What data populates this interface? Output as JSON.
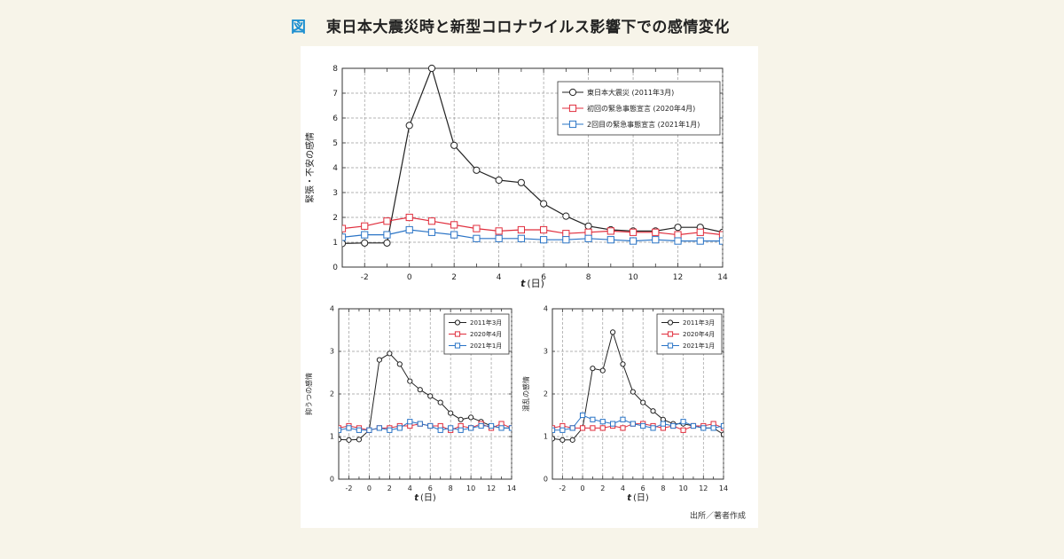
{
  "heading": {
    "fig_label": "図",
    "title": "東日本大震災時と新型コロナウイルス影響下での感情変化"
  },
  "source_note": "出所／著者作成",
  "colors": {
    "black": "#222222",
    "red": "#e02d3c",
    "blue": "#2a74c6",
    "grid": "#9a9a9a",
    "accent": "#1d8fd0"
  },
  "chart_data": [
    {
      "type": "line",
      "ylabel": "緊張・不安の感情",
      "xlabel_italic": "t",
      "xlabel_unit": "(日)",
      "xlim": [
        -3,
        14
      ],
      "ylim": [
        0,
        8
      ],
      "xticks": [
        -2,
        0,
        2,
        4,
        6,
        8,
        10,
        12,
        14
      ],
      "yticks": [
        0,
        1,
        2,
        3,
        4,
        5,
        6,
        7,
        8
      ],
      "grid": true,
      "legend_position": "top-right",
      "series": [
        {
          "name": "東日本大震災 (2011年3月)",
          "color": "#222222",
          "marker": "circle",
          "points": [
            [
              -3,
              0.95
            ],
            [
              -2,
              0.97
            ],
            [
              -1,
              0.97
            ],
            [
              0,
              5.7
            ],
            [
              1,
              8.0
            ],
            [
              2,
              4.9
            ],
            [
              3,
              3.9
            ],
            [
              4,
              3.5
            ],
            [
              5,
              3.4
            ],
            [
              6,
              2.55
            ],
            [
              7,
              2.05
            ],
            [
              8,
              1.65
            ],
            [
              9,
              1.5
            ],
            [
              10,
              1.45
            ],
            [
              11,
              1.45
            ],
            [
              12,
              1.6
            ],
            [
              13,
              1.6
            ],
            [
              14,
              1.4
            ]
          ]
        },
        {
          "name": "初回の緊急事態宣言 (2020年4月)",
          "color": "#e02d3c",
          "marker": "square",
          "points": [
            [
              -3,
              1.55
            ],
            [
              -2,
              1.65
            ],
            [
              -1,
              1.85
            ],
            [
              0,
              2.0
            ],
            [
              1,
              1.85
            ],
            [
              2,
              1.7
            ],
            [
              3,
              1.55
            ],
            [
              4,
              1.45
            ],
            [
              5,
              1.5
            ],
            [
              6,
              1.5
            ],
            [
              7,
              1.35
            ],
            [
              8,
              1.4
            ],
            [
              9,
              1.45
            ],
            [
              10,
              1.4
            ],
            [
              11,
              1.4
            ],
            [
              12,
              1.3
            ],
            [
              13,
              1.4
            ],
            [
              14,
              1.3
            ]
          ]
        },
        {
          "name": "2回目の緊急事態宣言 (2021年1月)",
          "color": "#2a74c6",
          "marker": "square",
          "points": [
            [
              -3,
              1.2
            ],
            [
              -2,
              1.3
            ],
            [
              -1,
              1.3
            ],
            [
              0,
              1.5
            ],
            [
              1,
              1.4
            ],
            [
              2,
              1.3
            ],
            [
              3,
              1.15
            ],
            [
              4,
              1.15
            ],
            [
              5,
              1.15
            ],
            [
              6,
              1.1
            ],
            [
              7,
              1.1
            ],
            [
              8,
              1.15
            ],
            [
              9,
              1.1
            ],
            [
              10,
              1.05
            ],
            [
              11,
              1.1
            ],
            [
              12,
              1.05
            ],
            [
              13,
              1.05
            ],
            [
              14,
              1.05
            ]
          ]
        }
      ]
    },
    {
      "type": "line",
      "ylabel": "抑うつの感情",
      "xlabel_italic": "t",
      "xlabel_unit": "(日)",
      "xlim": [
        -3,
        14
      ],
      "ylim": [
        0,
        4
      ],
      "xticks": [
        -2,
        0,
        2,
        4,
        6,
        8,
        10,
        12,
        14
      ],
      "yticks": [
        0,
        1,
        2,
        3,
        4
      ],
      "grid": true,
      "legend_position": "top-right",
      "series": [
        {
          "name": "2011年3月",
          "color": "#222222",
          "marker": "circle",
          "points": [
            [
              -3,
              0.93
            ],
            [
              -2,
              0.92
            ],
            [
              -1,
              0.93
            ],
            [
              0,
              1.15
            ],
            [
              1,
              2.8
            ],
            [
              2,
              2.95
            ],
            [
              3,
              2.7
            ],
            [
              4,
              2.3
            ],
            [
              5,
              2.1
            ],
            [
              6,
              1.95
            ],
            [
              7,
              1.8
            ],
            [
              8,
              1.55
            ],
            [
              9,
              1.4
            ],
            [
              10,
              1.45
            ],
            [
              11,
              1.35
            ],
            [
              12,
              1.25
            ],
            [
              13,
              1.2
            ],
            [
              14,
              1.2
            ]
          ]
        },
        {
          "name": "2020年4月",
          "color": "#e02d3c",
          "marker": "square",
          "points": [
            [
              -3,
              1.2
            ],
            [
              -2,
              1.25
            ],
            [
              -1,
              1.2
            ],
            [
              0,
              1.15
            ],
            [
              1,
              1.2
            ],
            [
              2,
              1.2
            ],
            [
              3,
              1.25
            ],
            [
              4,
              1.25
            ],
            [
              5,
              1.3
            ],
            [
              6,
              1.25
            ],
            [
              7,
              1.25
            ],
            [
              8,
              1.15
            ],
            [
              9,
              1.25
            ],
            [
              10,
              1.2
            ],
            [
              11,
              1.3
            ],
            [
              12,
              1.2
            ],
            [
              13,
              1.3
            ],
            [
              14,
              1.2
            ]
          ]
        },
        {
          "name": "2021年1月",
          "color": "#2a74c6",
          "marker": "square",
          "points": [
            [
              -3,
              1.15
            ],
            [
              -2,
              1.2
            ],
            [
              -1,
              1.15
            ],
            [
              0,
              1.15
            ],
            [
              1,
              1.2
            ],
            [
              2,
              1.15
            ],
            [
              3,
              1.2
            ],
            [
              4,
              1.35
            ],
            [
              5,
              1.3
            ],
            [
              6,
              1.25
            ],
            [
              7,
              1.15
            ],
            [
              8,
              1.2
            ],
            [
              9,
              1.15
            ],
            [
              10,
              1.2
            ],
            [
              11,
              1.25
            ],
            [
              12,
              1.25
            ],
            [
              13,
              1.2
            ],
            [
              14,
              1.2
            ]
          ]
        }
      ]
    },
    {
      "type": "line",
      "ylabel": "混乱の感情",
      "xlabel_italic": "t",
      "xlabel_unit": "(日)",
      "xlim": [
        -3,
        14
      ],
      "ylim": [
        0,
        4
      ],
      "xticks": [
        -2,
        0,
        2,
        4,
        6,
        8,
        10,
        12,
        14
      ],
      "yticks": [
        0,
        1,
        2,
        3,
        4
      ],
      "grid": true,
      "legend_position": "top-right",
      "series": [
        {
          "name": "2011年3月",
          "color": "#222222",
          "marker": "circle",
          "points": [
            [
              -3,
              0.95
            ],
            [
              -2,
              0.92
            ],
            [
              -1,
              0.92
            ],
            [
              0,
              1.2
            ],
            [
              1,
              2.6
            ],
            [
              2,
              2.55
            ],
            [
              3,
              3.45
            ],
            [
              4,
              2.7
            ],
            [
              5,
              2.05
            ],
            [
              6,
              1.8
            ],
            [
              7,
              1.6
            ],
            [
              8,
              1.4
            ],
            [
              9,
              1.3
            ],
            [
              10,
              1.3
            ],
            [
              11,
              1.25
            ],
            [
              12,
              1.2
            ],
            [
              13,
              1.2
            ],
            [
              14,
              1.05
            ]
          ]
        },
        {
          "name": "2020年4月",
          "color": "#e02d3c",
          "marker": "square",
          "points": [
            [
              -3,
              1.2
            ],
            [
              -2,
              1.25
            ],
            [
              -1,
              1.2
            ],
            [
              0,
              1.2
            ],
            [
              1,
              1.2
            ],
            [
              2,
              1.2
            ],
            [
              3,
              1.25
            ],
            [
              4,
              1.2
            ],
            [
              5,
              1.3
            ],
            [
              6,
              1.3
            ],
            [
              7,
              1.25
            ],
            [
              8,
              1.2
            ],
            [
              9,
              1.25
            ],
            [
              10,
              1.15
            ],
            [
              11,
              1.25
            ],
            [
              12,
              1.25
            ],
            [
              13,
              1.3
            ],
            [
              14,
              1.2
            ]
          ]
        },
        {
          "name": "2021年1月",
          "color": "#2a74c6",
          "marker": "square",
          "points": [
            [
              -3,
              1.15
            ],
            [
              -2,
              1.15
            ],
            [
              -1,
              1.2
            ],
            [
              0,
              1.5
            ],
            [
              1,
              1.4
            ],
            [
              2,
              1.35
            ],
            [
              3,
              1.3
            ],
            [
              4,
              1.4
            ],
            [
              5,
              1.3
            ],
            [
              6,
              1.25
            ],
            [
              7,
              1.2
            ],
            [
              8,
              1.3
            ],
            [
              9,
              1.25
            ],
            [
              10,
              1.35
            ],
            [
              11,
              1.25
            ],
            [
              12,
              1.2
            ],
            [
              13,
              1.2
            ],
            [
              14,
              1.25
            ]
          ]
        }
      ]
    }
  ]
}
